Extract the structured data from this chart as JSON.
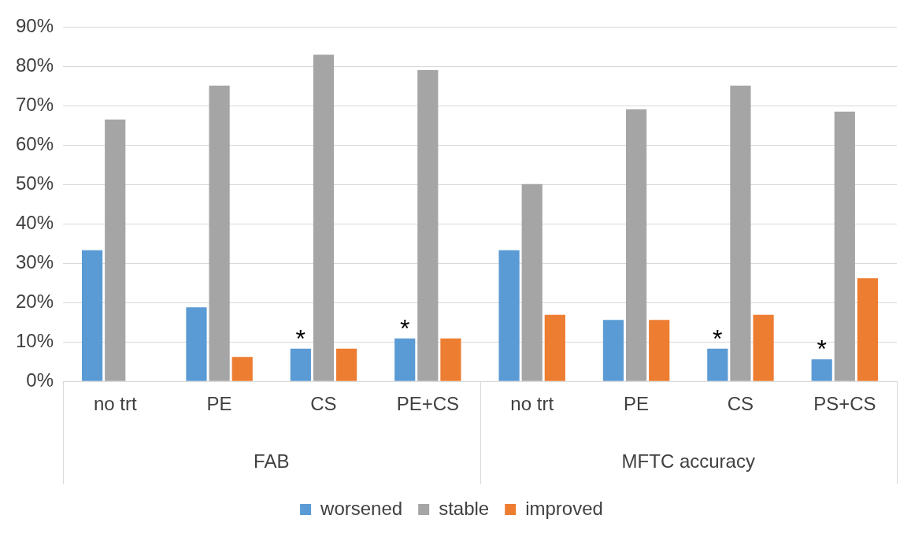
{
  "chart_data": {
    "type": "bar",
    "categories": [
      "no trt",
      "PE",
      "CS",
      "PE+CS",
      "no trt",
      "PE",
      "CS",
      "PS+CS"
    ],
    "series": [
      {
        "name": "worsened",
        "color": "#5b9bd5",
        "values": [
          33.3,
          18.8,
          8.3,
          10.9,
          33.3,
          15.6,
          8.3,
          5.6
        ]
      },
      {
        "name": "stable",
        "color": "#a5a5a5",
        "values": [
          66.5,
          75.1,
          83.0,
          79.1,
          50.1,
          69.1,
          75.1,
          68.5
        ]
      },
      {
        "name": "improved",
        "color": "#ed7d31",
        "values": [
          0,
          6.2,
          8.3,
          10.9,
          16.9,
          15.6,
          16.9,
          26.2
        ]
      }
    ],
    "ylim": [
      0,
      90
    ],
    "yticks": [
      {
        "value": 0,
        "label": "0%"
      },
      {
        "value": 10,
        "label": "10%"
      },
      {
        "value": 20,
        "label": "20%"
      },
      {
        "value": 30,
        "label": "30%"
      },
      {
        "value": 40,
        "label": "40%"
      },
      {
        "value": 50,
        "label": "50%"
      },
      {
        "value": 60,
        "label": "60%"
      },
      {
        "value": 70,
        "label": "70%"
      },
      {
        "value": 80,
        "label": "80%"
      },
      {
        "value": 90,
        "label": "90%"
      }
    ],
    "grid": "y",
    "legend": "bottom",
    "annotations": [
      "FAB",
      "MFTC accuracy",
      "*",
      "*",
      "*",
      "*"
    ]
  }
}
